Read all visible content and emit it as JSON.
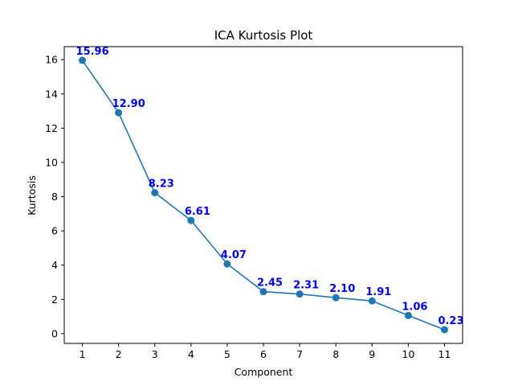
{
  "chart_data": {
    "type": "line",
    "title": "ICA Kurtosis Plot",
    "xlabel": "Component",
    "ylabel": "Kurtosis",
    "x": [
      1,
      2,
      3,
      4,
      5,
      6,
      7,
      8,
      9,
      10,
      11
    ],
    "series": [
      {
        "values": [
          15.96,
          12.9,
          8.23,
          6.61,
          4.07,
          2.45,
          2.31,
          2.1,
          1.91,
          1.06,
          0.23
        ],
        "labels": [
          "15.96",
          "12.90",
          "8.23",
          "6.61",
          "4.07",
          "2.45",
          "2.31",
          "2.10",
          "1.91",
          "1.06",
          "0.23"
        ],
        "color": "#1f77b4",
        "label_color": "#0000ff",
        "marker": "circle"
      }
    ],
    "xticks": [
      "1",
      "2",
      "3",
      "4",
      "5",
      "6",
      "7",
      "8",
      "9",
      "10",
      "11"
    ],
    "yticks": [
      "0",
      "2",
      "4",
      "6",
      "8",
      "10",
      "12",
      "14",
      "16"
    ],
    "xlim": [
      0.5,
      11.5
    ],
    "ylim": [
      -0.57,
      16.76
    ],
    "grid": false,
    "legend": false
  }
}
